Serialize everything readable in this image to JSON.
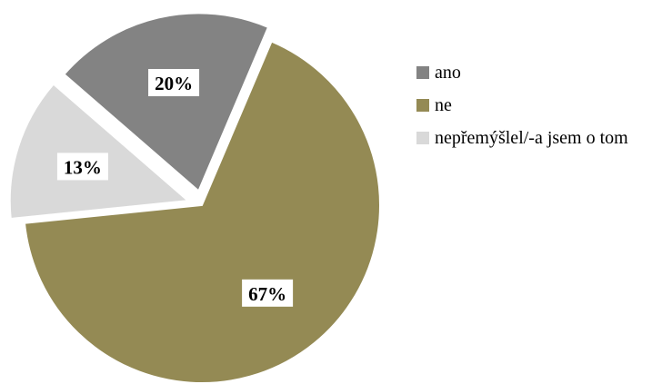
{
  "chart_data": {
    "type": "pie",
    "title": "",
    "slices": [
      {
        "name": "ano",
        "value": 20,
        "label": "20%",
        "color": "#838383",
        "exploded": true
      },
      {
        "name": "ne",
        "value": 67,
        "label": "67%",
        "color": "#948a54",
        "exploded": false
      },
      {
        "name": "nepřemýšlel/-a jsem o tom",
        "value": 13,
        "label": "13%",
        "color": "#d9d9d9",
        "exploded": true
      }
    ],
    "legend_position": "right"
  }
}
